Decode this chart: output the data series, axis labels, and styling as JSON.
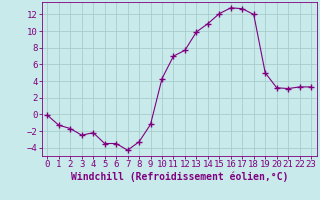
{
  "x": [
    0,
    1,
    2,
    3,
    4,
    5,
    6,
    7,
    8,
    9,
    10,
    11,
    12,
    13,
    14,
    15,
    16,
    17,
    18,
    19,
    20,
    21,
    22,
    23
  ],
  "y": [
    -0.1,
    -1.3,
    -1.7,
    -2.5,
    -2.2,
    -3.5,
    -3.5,
    -4.3,
    -3.3,
    -1.2,
    4.3,
    7.0,
    7.7,
    9.9,
    10.9,
    12.1,
    12.8,
    12.7,
    12.0,
    5.0,
    3.2,
    3.1,
    3.3,
    3.3
  ],
  "line_color": "#800080",
  "marker": "+",
  "marker_size": 4,
  "bg_color": "#c8eaea",
  "grid_color": "#a8cccc",
  "xlabel": "Windchill (Refroidissement éolien,°C)",
  "xlabel_fontsize": 7,
  "tick_fontsize": 6.5,
  "xlim": [
    -0.5,
    23.5
  ],
  "ylim": [
    -5,
    13.5
  ],
  "yticks": [
    -4,
    -2,
    0,
    2,
    4,
    6,
    8,
    10,
    12
  ],
  "xticks": [
    0,
    1,
    2,
    3,
    4,
    5,
    6,
    7,
    8,
    9,
    10,
    11,
    12,
    13,
    14,
    15,
    16,
    17,
    18,
    19,
    20,
    21,
    22,
    23
  ]
}
